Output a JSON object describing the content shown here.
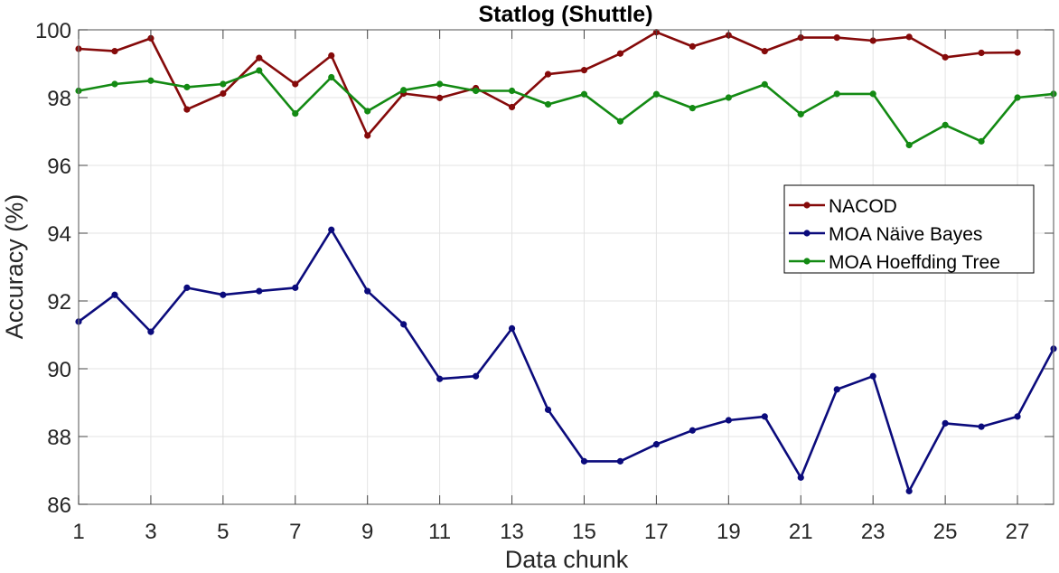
{
  "chart_data": {
    "type": "line",
    "title": "Statlog (Shuttle)",
    "xlabel": "Data chunk",
    "ylabel": "Accuracy (%)",
    "xlim": [
      1,
      28
    ],
    "ylim": [
      86,
      100
    ],
    "xticks": [
      1,
      3,
      5,
      7,
      9,
      11,
      13,
      15,
      17,
      19,
      21,
      23,
      25,
      27
    ],
    "yticks": [
      86,
      88,
      90,
      92,
      94,
      96,
      98,
      100
    ],
    "grid": true,
    "legend_position": "inside right, middle-upper",
    "series": [
      {
        "name": "NACOD",
        "color": "#850a0a",
        "x": [
          1,
          2,
          3,
          4,
          5,
          6,
          7,
          8,
          9,
          10,
          11,
          12,
          13,
          14,
          15,
          16,
          17,
          18,
          19,
          20,
          21,
          22,
          23,
          24,
          25,
          26,
          27
        ],
        "values": [
          99.44,
          99.37,
          99.75,
          97.65,
          98.12,
          99.17,
          98.4,
          99.24,
          96.88,
          98.12,
          97.99,
          98.28,
          97.72,
          98.69,
          98.81,
          99.3,
          99.93,
          99.51,
          99.84,
          99.37,
          99.77,
          99.77,
          99.68,
          99.79,
          99.19,
          99.32,
          99.33
        ]
      },
      {
        "name": "MOA Näive Bayes",
        "color": "#0b0b7c",
        "x": [
          1,
          2,
          3,
          4,
          5,
          6,
          7,
          8,
          9,
          10,
          11,
          12,
          13,
          14,
          15,
          16,
          17,
          18,
          19,
          20,
          21,
          22,
          23,
          24,
          25,
          26,
          27,
          28
        ],
        "values": [
          91.39,
          92.18,
          91.09,
          92.39,
          92.18,
          92.29,
          92.39,
          94.1,
          92.29,
          91.31,
          89.7,
          89.78,
          91.19,
          88.79,
          87.27,
          87.27,
          87.77,
          88.18,
          88.48,
          88.59,
          86.79,
          89.39,
          89.78,
          86.39,
          88.39,
          88.29,
          88.59,
          90.59
        ]
      },
      {
        "name": "MOA Hoeffding Tree",
        "color": "#138a13",
        "x": [
          1,
          2,
          3,
          4,
          5,
          6,
          7,
          8,
          9,
          10,
          11,
          12,
          13,
          14,
          15,
          16,
          17,
          18,
          19,
          20,
          21,
          22,
          23,
          24,
          25,
          26,
          27,
          28
        ],
        "values": [
          98.2,
          98.4,
          98.5,
          98.31,
          98.4,
          98.8,
          97.53,
          98.6,
          97.6,
          98.22,
          98.4,
          98.2,
          98.2,
          97.8,
          98.1,
          97.3,
          98.1,
          97.69,
          98.0,
          98.39,
          97.51,
          98.11,
          98.11,
          96.6,
          97.19,
          96.71,
          98.0,
          98.11
        ]
      }
    ]
  }
}
